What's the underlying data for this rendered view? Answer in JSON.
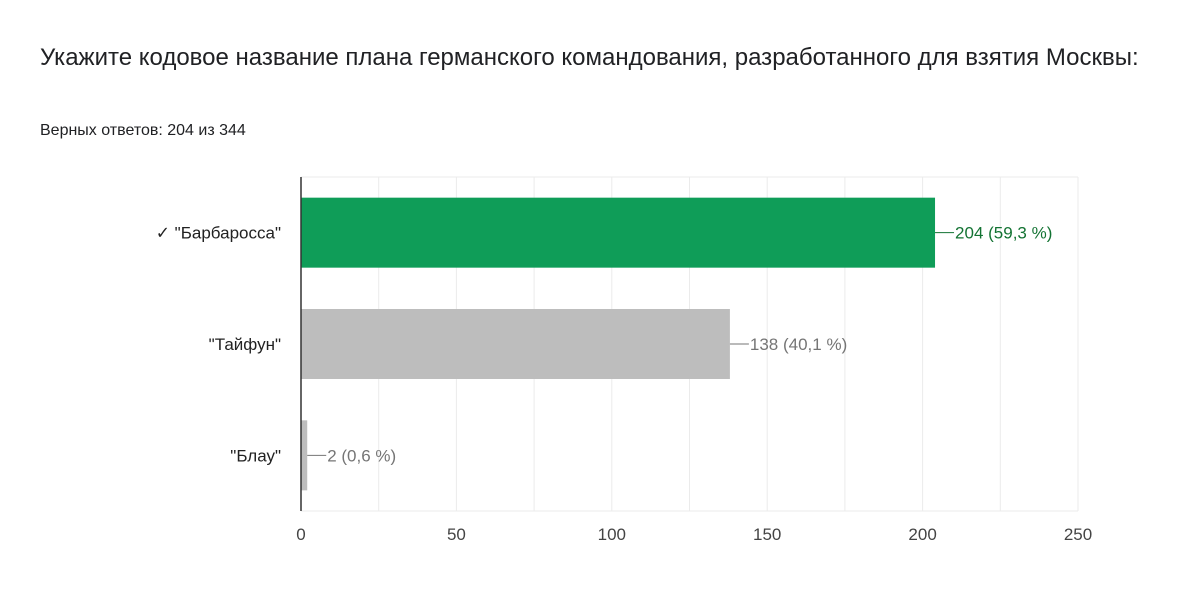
{
  "question": {
    "title": "Укажите кодовое название плана германского командования, разработанного для взятия Москвы:",
    "score_text": "Верных ответов: 204 из 344"
  },
  "colors": {
    "correct_bar": "#0f9d58",
    "correct_label": "#137333",
    "other_bar": "#bdbdbd",
    "other_label": "#757575",
    "gridline": "#ebebeb",
    "axis": "#333333",
    "tick_label": "#444444"
  },
  "chart_data": {
    "type": "bar",
    "orientation": "horizontal",
    "categories": [
      "✓ \"Барбаросса\"",
      "\"Тайфун\"",
      "\"Блау\""
    ],
    "values": [
      204,
      138,
      2
    ],
    "data_labels": [
      "204 (59,3 %)",
      "138 (40,1 %)",
      "2 (0,6 %)"
    ],
    "correct": [
      true,
      false,
      false
    ],
    "xlim": [
      0,
      250
    ],
    "xticks": [
      0,
      50,
      100,
      150,
      200,
      250
    ],
    "grid": true
  }
}
